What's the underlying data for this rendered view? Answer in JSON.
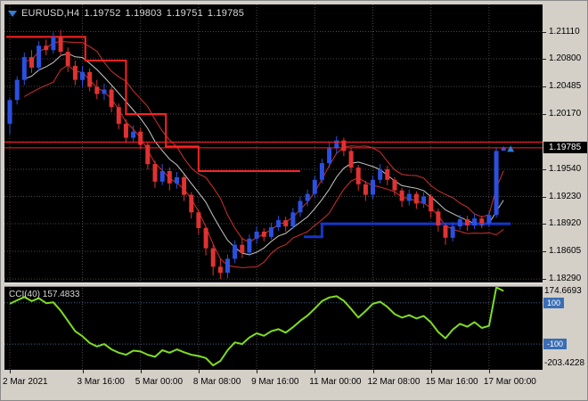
{
  "window": {
    "background": "#d4d0c8"
  },
  "header": {
    "symbol_period": "EURUSD,H4",
    "open": "1.19752",
    "high": "1.19803",
    "low": "1.19751",
    "close": "1.19785"
  },
  "indicator_label": "CCI(40) 157.4833",
  "colors": {
    "background": "#000000",
    "grid": "#4a4a4a",
    "bull": "#2b50e0",
    "bear": "#e03232",
    "band": "#d23030",
    "mid_line": "#c8c8c8",
    "trail": "#ff2222",
    "support": "#1535c8",
    "bid_line": "#ff2222",
    "cci": "#7fdd20",
    "level_line": "#46648c",
    "level_label_bg": "#3a6db4",
    "current_label_bg": "#000000",
    "marker": "#2f7ed8"
  },
  "price_axis": {
    "current": "1.19785",
    "current_value": 1.19785,
    "labels": [
      {
        "text": "1.21110",
        "value": 1.2111
      },
      {
        "text": "1.20800",
        "value": 1.208
      },
      {
        "text": "1.20485",
        "value": 1.20485
      },
      {
        "text": "1.20170",
        "value": 1.2017
      },
      {
        "text": "1.19540",
        "value": 1.1954
      },
      {
        "text": "1.19230",
        "value": 1.1923
      },
      {
        "text": "1.18920",
        "value": 1.1892
      },
      {
        "text": "1.18605",
        "value": 1.18605
      },
      {
        "text": "1.18290",
        "value": 1.1829
      }
    ]
  },
  "indicator_axis": {
    "max_label": "174.6693",
    "max_value": 174.6693,
    "min_label": "-203.4228",
    "min_value": -203.4228,
    "levels": [
      {
        "text": "100",
        "value": 100
      },
      {
        "text": "-100",
        "value": -100
      }
    ]
  },
  "time_axis": {
    "ticks": [
      {
        "label": "2 Mar 2021",
        "index": 0
      },
      {
        "label": "3 Mar 16:00",
        "index": 10
      },
      {
        "label": "5 Mar 00:00",
        "index": 18
      },
      {
        "label": "8 Mar 08:00",
        "index": 26
      },
      {
        "label": "9 Mar 16:00",
        "index": 34
      },
      {
        "label": "11 Mar 00:00",
        "index": 42
      },
      {
        "label": "12 Mar 08:00",
        "index": 50
      },
      {
        "label": "15 Mar 16:00",
        "index": 58
      },
      {
        "label": "17 Mar 00:00",
        "index": 66
      }
    ]
  },
  "chart_data": [
    {
      "type": "candlestick",
      "title": "EURUSD H4",
      "ylim": [
        1.1825,
        1.2142
      ],
      "grid_values": [
        1.2111,
        1.208,
        1.20485,
        1.2017,
        1.19855,
        1.1954,
        1.1923,
        1.1892,
        1.18605,
        1.1829
      ],
      "candles": [
        [
          "2 Mar 00:00",
          1.2006,
          1.2036,
          1.1994,
          1.2033
        ],
        [
          "2 Mar 04:00",
          1.2033,
          1.206,
          1.2028,
          1.2056
        ],
        [
          "2 Mar 08:00",
          1.2056,
          1.2087,
          1.205,
          1.2082
        ],
        [
          "2 Mar 12:00",
          1.2082,
          1.209,
          1.2064,
          1.207
        ],
        [
          "2 Mar 16:00",
          1.207,
          1.21,
          1.2066,
          1.2095
        ],
        [
          "2 Mar 20:00",
          1.2095,
          1.2102,
          1.2084,
          1.209
        ],
        [
          "3 Mar 00:00",
          1.209,
          1.211,
          1.2086,
          1.2105
        ],
        [
          "3 Mar 04:00",
          1.2105,
          1.2113,
          1.2083,
          1.2088
        ],
        [
          "3 Mar 08:00",
          1.2088,
          1.2093,
          1.2065,
          1.2072
        ],
        [
          "3 Mar 12:00",
          1.2072,
          1.2078,
          1.205,
          1.2056
        ],
        [
          "3 Mar 16:00",
          1.2056,
          1.2072,
          1.2048,
          1.2065
        ],
        [
          "3 Mar 20:00",
          1.2065,
          1.2069,
          1.2043,
          1.2048
        ],
        [
          "4 Mar 00:00",
          1.2048,
          1.2056,
          1.2034,
          1.204
        ],
        [
          "4 Mar 04:00",
          1.204,
          1.2052,
          1.2033,
          1.2045
        ],
        [
          "4 Mar 08:00",
          1.2045,
          1.2048,
          1.2019,
          1.2025
        ],
        [
          "4 Mar 12:00",
          1.2025,
          1.2029,
          1.2,
          1.2006
        ],
        [
          "4 Mar 16:00",
          1.2006,
          1.2011,
          1.1984,
          1.199
        ],
        [
          "4 Mar 20:00",
          1.199,
          1.2004,
          1.1986,
          1.1997
        ],
        [
          "5 Mar 00:00",
          1.1997,
          1.2001,
          1.1977,
          1.1982
        ],
        [
          "5 Mar 04:00",
          1.1982,
          1.1985,
          1.1954,
          1.196
        ],
        [
          "5 Mar 08:00",
          1.196,
          1.1964,
          1.1933,
          1.194
        ],
        [
          "5 Mar 12:00",
          1.194,
          1.196,
          1.1936,
          1.1952
        ],
        [
          "5 Mar 16:00",
          1.1952,
          1.1956,
          1.193,
          1.1938
        ],
        [
          "5 Mar 20:00",
          1.1938,
          1.1951,
          1.1932,
          1.1945
        ],
        [
          "8 Mar 00:00",
          1.1945,
          1.1948,
          1.1918,
          1.1925
        ],
        [
          "8 Mar 04:00",
          1.1925,
          1.1928,
          1.1898,
          1.1905
        ],
        [
          "8 Mar 08:00",
          1.1905,
          1.1908,
          1.188,
          1.1887
        ],
        [
          "8 Mar 12:00",
          1.1887,
          1.1889,
          1.1856,
          1.1864
        ],
        [
          "8 Mar 16:00",
          1.1864,
          1.1868,
          1.1833,
          1.1843
        ],
        [
          "8 Mar 20:00",
          1.1843,
          1.1852,
          1.1829,
          1.1836
        ],
        [
          "9 Mar 00:00",
          1.1836,
          1.1857,
          1.183,
          1.1852
        ],
        [
          "9 Mar 04:00",
          1.1852,
          1.1873,
          1.1847,
          1.1868
        ],
        [
          "9 Mar 08:00",
          1.1868,
          1.1876,
          1.1853,
          1.1859
        ],
        [
          "9 Mar 12:00",
          1.1859,
          1.188,
          1.1855,
          1.1875
        ],
        [
          "9 Mar 16:00",
          1.1875,
          1.1889,
          1.1869,
          1.1883
        ],
        [
          "9 Mar 20:00",
          1.1883,
          1.1887,
          1.1872,
          1.1877
        ],
        [
          "10 Mar 00:00",
          1.1877,
          1.1893,
          1.1874,
          1.1888
        ],
        [
          "10 Mar 04:00",
          1.1888,
          1.1901,
          1.1884,
          1.1896
        ],
        [
          "10 Mar 08:00",
          1.1896,
          1.19,
          1.1883,
          1.1889
        ],
        [
          "10 Mar 12:00",
          1.1889,
          1.191,
          1.1886,
          1.1905
        ],
        [
          "10 Mar 16:00",
          1.1905,
          1.1923,
          1.19,
          1.1918
        ],
        [
          "10 Mar 20:00",
          1.1918,
          1.1931,
          1.1912,
          1.1926
        ],
        [
          "11 Mar 00:00",
          1.1926,
          1.1947,
          1.1921,
          1.1942
        ],
        [
          "11 Mar 04:00",
          1.1942,
          1.1966,
          1.1938,
          1.1961
        ],
        [
          "11 Mar 08:00",
          1.1961,
          1.1985,
          1.1956,
          1.1978
        ],
        [
          "11 Mar 12:00",
          1.1978,
          1.1992,
          1.1972,
          1.1987
        ],
        [
          "11 Mar 16:00",
          1.1987,
          1.199,
          1.1969,
          1.1975
        ],
        [
          "11 Mar 20:00",
          1.1975,
          1.1979,
          1.195,
          1.1956
        ],
        [
          "12 Mar 00:00",
          1.1956,
          1.1959,
          1.193,
          1.1937
        ],
        [
          "12 Mar 04:00",
          1.1937,
          1.1941,
          1.1918,
          1.1925
        ],
        [
          "12 Mar 08:00",
          1.1925,
          1.1947,
          1.192,
          1.1942
        ],
        [
          "12 Mar 12:00",
          1.1942,
          1.196,
          1.1938,
          1.1954
        ],
        [
          "12 Mar 16:00",
          1.1954,
          1.1958,
          1.1936,
          1.1942
        ],
        [
          "12 Mar 20:00",
          1.1942,
          1.1945,
          1.1924,
          1.193
        ],
        [
          "15 Mar 00:00",
          1.193,
          1.1933,
          1.1911,
          1.1918
        ],
        [
          "15 Mar 04:00",
          1.1918,
          1.1931,
          1.1913,
          1.1926
        ],
        [
          "15 Mar 08:00",
          1.1926,
          1.1929,
          1.1909,
          1.1915
        ],
        [
          "15 Mar 12:00",
          1.1915,
          1.1928,
          1.191,
          1.1923
        ],
        [
          "15 Mar 16:00",
          1.1923,
          1.1926,
          1.1899,
          1.1906
        ],
        [
          "15 Mar 20:00",
          1.1906,
          1.1909,
          1.1883,
          1.189
        ],
        [
          "16 Mar 00:00",
          1.189,
          1.1893,
          1.1868,
          1.1876
        ],
        [
          "16 Mar 04:00",
          1.1876,
          1.1894,
          1.1872,
          1.1889
        ],
        [
          "16 Mar 08:00",
          1.1889,
          1.1902,
          1.1885,
          1.1897
        ],
        [
          "16 Mar 12:00",
          1.1897,
          1.1901,
          1.1884,
          1.189
        ],
        [
          "16 Mar 16:00",
          1.189,
          1.1903,
          1.1886,
          1.1898
        ],
        [
          "16 Mar 20:00",
          1.1898,
          1.1901,
          1.1887,
          1.1892
        ],
        [
          "17 Mar 00:00",
          1.1892,
          1.1906,
          1.1888,
          1.1902
        ],
        [
          "17 Mar 04:00",
          1.1902,
          1.1979,
          1.1899,
          1.1975
        ],
        [
          "17 Mar 08:00",
          1.19752,
          1.19803,
          1.19751,
          1.19785
        ]
      ],
      "overlays": {
        "trail_stop": {
          "segments": [
            [
              -0.5,
              10.4,
              1.2105
            ],
            [
              10.4,
              16,
              1.2078
            ],
            [
              16,
              21.5,
              1.2017
            ],
            [
              21.5,
              26,
              1.198
            ],
            [
              26,
              40,
              1.1952
            ]
          ]
        },
        "support_line": {
          "segments": [
            [
              40.5,
              43,
              1.1877
            ],
            [
              43,
              69,
              1.1892
            ]
          ]
        },
        "bands": {
          "period": 7,
          "deviation": 0.8
        },
        "horizontal_line": {
          "value": 1.1985
        },
        "bid_line": {
          "value": 1.19785
        },
        "marker": {
          "index": 68,
          "price": 1.1977
        }
      }
    },
    {
      "type": "line",
      "name": "CCI",
      "period": 40,
      "current": 157.4833,
      "ylim": [
        -203.4228,
        174.6693
      ],
      "levels": [
        100,
        -100
      ],
      "values": [
        95,
        112,
        128,
        108,
        122,
        98,
        102,
        62,
        12,
        -38,
        -62,
        -95,
        -112,
        -100,
        -126,
        -142,
        -152,
        -132,
        -136,
        -152,
        -162,
        -130,
        -142,
        -126,
        -140,
        -152,
        -158,
        -168,
        -203.4228,
        -182,
        -130,
        -92,
        -100,
        -68,
        -48,
        -60,
        -38,
        -28,
        -45,
        -18,
        12,
        38,
        72,
        108,
        126,
        132,
        110,
        70,
        28,
        60,
        95,
        105,
        80,
        45,
        28,
        40,
        24,
        36,
        5,
        -42,
        -72,
        -30,
        -2,
        -16,
        6,
        -22,
        -12,
        174.6693,
        157.4833
      ]
    }
  ]
}
